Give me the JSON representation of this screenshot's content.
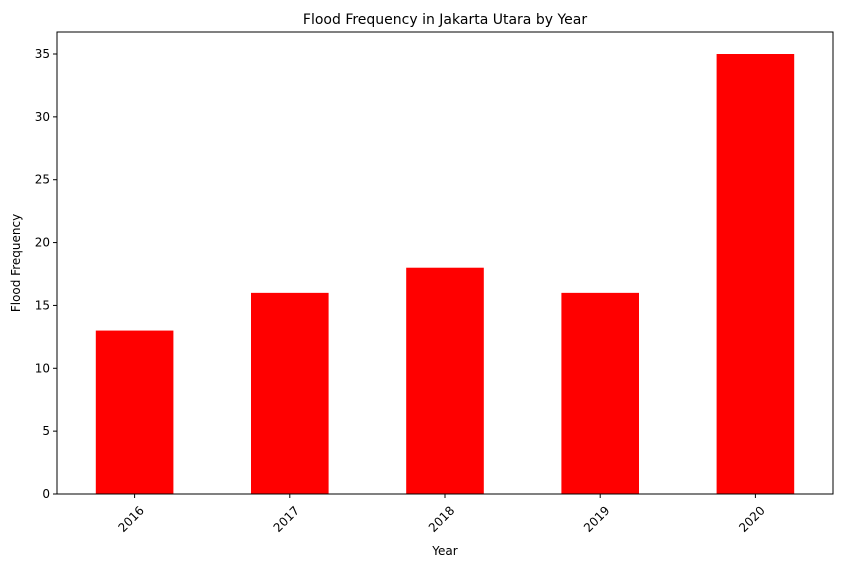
{
  "chart_data": {
    "type": "bar",
    "title": "Flood Frequency in Jakarta Utara by Year",
    "xlabel": "Year",
    "ylabel": "Flood Frequency",
    "categories": [
      "2016",
      "2017",
      "2018",
      "2019",
      "2020"
    ],
    "values": [
      13,
      16,
      18,
      16,
      35
    ],
    "ylim": [
      0,
      36.75
    ],
    "yticks": [
      0,
      5,
      10,
      15,
      20,
      25,
      30,
      35
    ],
    "bar_color": "#ff0000",
    "grid": false,
    "legend": "none",
    "xtick_rotation": "45"
  }
}
